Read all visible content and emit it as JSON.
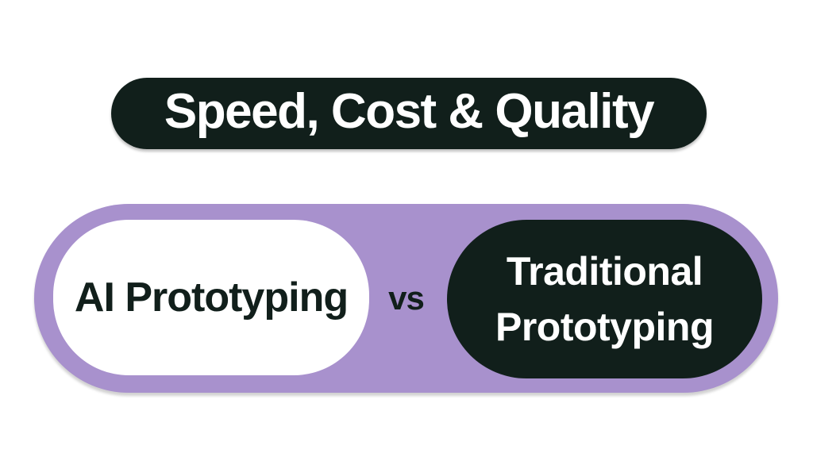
{
  "canvas": {
    "background_color": "#ffffff"
  },
  "title_banner": {
    "label": "Speed, Cost & Quality",
    "background_color": "#111f1b",
    "text_color": "#ffffff"
  },
  "comparison": {
    "container_color": "#a891cd",
    "vs_label": "vs",
    "left_option": {
      "label": "AI Prototyping",
      "background_color": "#ffffff",
      "text_color": "#111f1b"
    },
    "right_option": {
      "label": "Traditional Prototyping",
      "background_color": "#111f1b",
      "text_color": "#ffffff"
    }
  }
}
